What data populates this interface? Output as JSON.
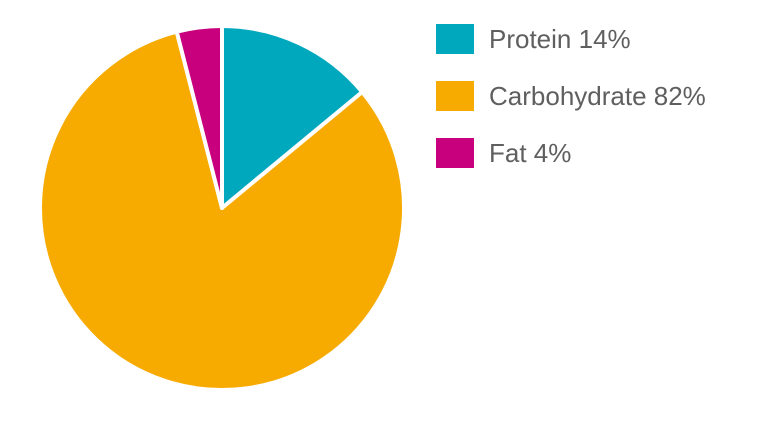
{
  "chart_data": {
    "type": "pie",
    "title": "",
    "slices": [
      {
        "label": "Protein 14%",
        "value": 14,
        "color": "#00a8bd"
      },
      {
        "label": "Carbohydrate 82%",
        "value": 82,
        "color": "#f7ab00"
      },
      {
        "label": "Fat 4%",
        "value": 4,
        "color": "#c8007d"
      }
    ],
    "start_angle_deg": 0,
    "direction": "clockwise",
    "legend_placement": "right"
  }
}
